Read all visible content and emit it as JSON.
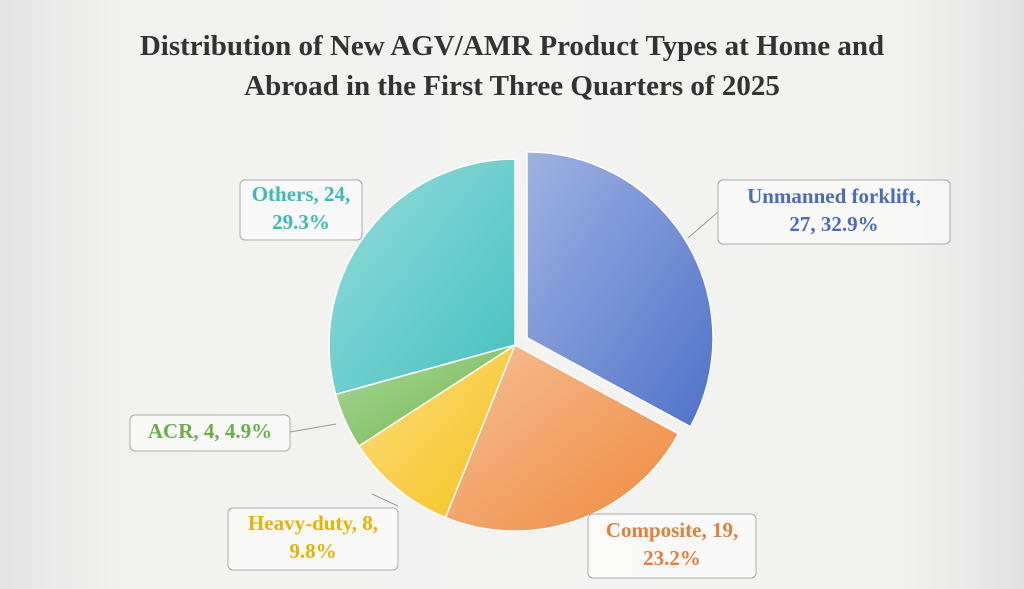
{
  "chart_data": {
    "type": "pie",
    "title": "Distribution of New AGV/AMR Product Types at Home and Abroad in the First Three Quarters of 2025",
    "values": [
      27,
      19,
      8,
      4,
      24
    ],
    "value_labels": [
      [
        "Unmanned forklift,",
        "27, 32.9%"
      ],
      [
        "Composite, 19,",
        "23.2%"
      ],
      [
        "Heavy-duty, 8,",
        "9.8%"
      ],
      [
        "ACR, 4, 4.9%"
      ],
      [
        "Others, 24,",
        "29.3%"
      ]
    ],
    "colors": [
      "#4f72c9",
      "#ef8a3e",
      "#f7c21b",
      "#6bb84a",
      "#43c1bf"
    ],
    "label_colors": [
      "#4a6bbf",
      "#e0803a",
      "#e6b400",
      "#6aae4a",
      "#3bb8b8"
    ],
    "explode": [
      true,
      false,
      false,
      false,
      false
    ]
  }
}
